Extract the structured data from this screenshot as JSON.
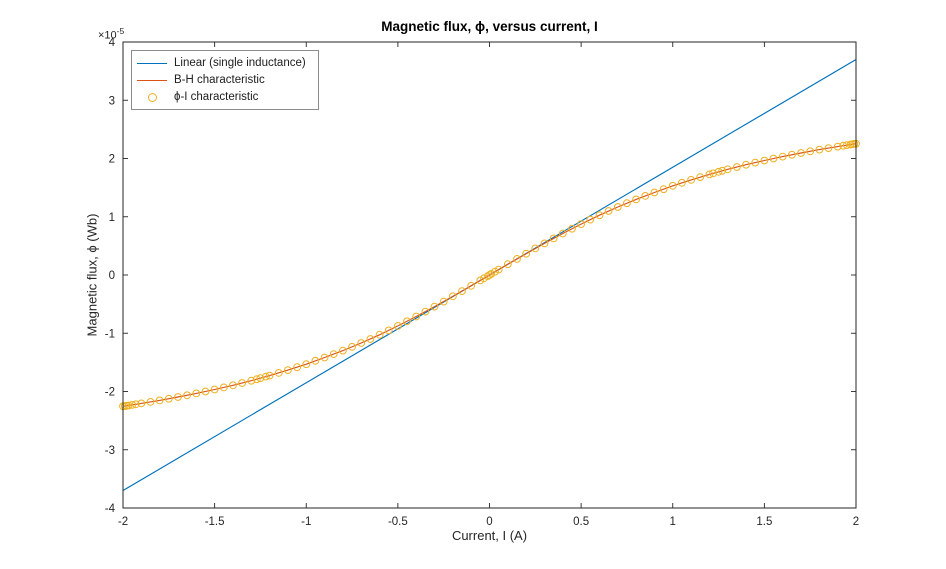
{
  "chart_data": {
    "type": "line",
    "title": "Magnetic flux,  ϕ,  versus current,  I",
    "xlabel": "Current, I (A)",
    "ylabel": "Magnetic flux,  ϕ  (Wb)",
    "y_offset_label": {
      "base": "×10",
      "exp": "-5"
    },
    "y_unit_multiplier": "1e-5",
    "axes": {
      "xlim": [
        -2,
        2
      ],
      "ylim": [
        -4,
        4
      ],
      "xticks": [
        -2,
        -1.5,
        -1,
        -0.5,
        0,
        0.5,
        1,
        1.5,
        2
      ],
      "xtick_labels": [
        "-2",
        "-1.5",
        "-1",
        "-0.5",
        "0",
        "0.5",
        "1",
        "1.5",
        "2"
      ],
      "yticks": [
        -4,
        -3,
        -2,
        -1,
        0,
        1,
        2,
        3,
        4
      ],
      "ytick_labels": [
        "-4",
        "-3",
        "-2",
        "-1",
        "0",
        "1",
        "2",
        "3",
        "4"
      ],
      "grid": false,
      "axis_color": "#262626",
      "background": "#ffffff"
    },
    "legend": {
      "position": "northwest",
      "items": [
        {
          "label": "Linear (single inductance)",
          "marker": "line",
          "color": "#0072BD"
        },
        {
          "label": "B-H characteristic",
          "marker": "line",
          "color": "#D95319"
        },
        {
          "label": "ϕ-I  characteristic",
          "marker": "circle",
          "color": "#EDB120"
        }
      ]
    },
    "series": [
      {
        "name": "Linear (single inductance)",
        "type": "line",
        "color": "#0072BD",
        "points": [
          [
            -2,
            -3.7
          ],
          [
            2,
            3.7
          ]
        ]
      },
      {
        "name": "B-H characteristic",
        "type": "line",
        "color": "#D95319",
        "points": [
          [
            -2.0,
            -2.254
          ],
          [
            -1.9,
            -2.205
          ],
          [
            -1.8,
            -2.152
          ],
          [
            -1.7,
            -2.095
          ],
          [
            -1.6,
            -2.033
          ],
          [
            -1.5,
            -1.966
          ],
          [
            -1.4,
            -1.893
          ],
          [
            -1.3,
            -1.814
          ],
          [
            -1.2,
            -1.727
          ],
          [
            -1.1,
            -1.633
          ],
          [
            -1.0,
            -1.531
          ],
          [
            -0.9,
            -1.417
          ],
          [
            -0.8,
            -1.297
          ],
          [
            -0.7,
            -1.167
          ],
          [
            -0.6,
            -1.026
          ],
          [
            -0.5,
            -0.874
          ],
          [
            -0.4,
            -0.713
          ],
          [
            -0.3,
            -0.543
          ],
          [
            -0.2,
            -0.366
          ],
          [
            -0.1,
            -0.185
          ],
          [
            0,
            0
          ],
          [
            0.1,
            0.185
          ],
          [
            0.2,
            0.366
          ],
          [
            0.3,
            0.543
          ],
          [
            0.4,
            0.713
          ],
          [
            0.5,
            0.874
          ],
          [
            0.6,
            1.026
          ],
          [
            0.7,
            1.167
          ],
          [
            0.8,
            1.297
          ],
          [
            0.9,
            1.417
          ],
          [
            1.0,
            1.531
          ],
          [
            1.1,
            1.633
          ],
          [
            1.2,
            1.727
          ],
          [
            1.3,
            1.814
          ],
          [
            1.4,
            1.893
          ],
          [
            1.5,
            1.966
          ],
          [
            1.6,
            2.033
          ],
          [
            1.7,
            2.095
          ],
          [
            1.8,
            2.152
          ],
          [
            1.9,
            2.205
          ],
          [
            2.0,
            2.254
          ]
        ]
      },
      {
        "name": "ϕ-I characteristic",
        "type": "scatter",
        "marker": "circle",
        "color": "#EDB120",
        "points": [
          [
            -2.0,
            -2.254
          ],
          [
            -1.99,
            -2.25
          ],
          [
            -1.98,
            -2.245
          ],
          [
            -1.97,
            -2.24
          ],
          [
            -1.95,
            -2.23
          ],
          [
            -1.93,
            -2.22
          ],
          [
            -1.9,
            -2.205
          ],
          [
            -1.85,
            -2.179
          ],
          [
            -1.8,
            -2.152
          ],
          [
            -1.75,
            -2.124
          ],
          [
            -1.7,
            -2.095
          ],
          [
            -1.65,
            -2.065
          ],
          [
            -1.6,
            -2.033
          ],
          [
            -1.55,
            -2.0
          ],
          [
            -1.5,
            -1.966
          ],
          [
            -1.45,
            -1.93
          ],
          [
            -1.4,
            -1.893
          ],
          [
            -1.35,
            -1.854
          ],
          [
            -1.3,
            -1.814
          ],
          [
            -1.27,
            -1.789
          ],
          [
            -1.25,
            -1.771
          ],
          [
            -1.22,
            -1.745
          ],
          [
            -1.2,
            -1.727
          ],
          [
            -1.15,
            -1.681
          ],
          [
            -1.1,
            -1.633
          ],
          [
            -1.05,
            -1.583
          ],
          [
            -1.0,
            -1.531
          ],
          [
            -0.95,
            -1.473
          ],
          [
            -0.9,
            -1.417
          ],
          [
            -0.85,
            -1.358
          ],
          [
            -0.8,
            -1.297
          ],
          [
            -0.75,
            -1.233
          ],
          [
            -0.7,
            -1.167
          ],
          [
            -0.65,
            -1.098
          ],
          [
            -0.6,
            -1.026
          ],
          [
            -0.55,
            -0.951
          ],
          [
            -0.5,
            -0.874
          ],
          [
            -0.45,
            -0.795
          ],
          [
            -0.4,
            -0.713
          ],
          [
            -0.35,
            -0.629
          ],
          [
            -0.3,
            -0.543
          ],
          [
            -0.25,
            -0.456
          ],
          [
            -0.2,
            -0.366
          ],
          [
            -0.15,
            -0.276
          ],
          [
            -0.1,
            -0.185
          ],
          [
            -0.05,
            -0.092
          ],
          [
            -0.03,
            -0.056
          ],
          [
            -0.01,
            -0.019
          ],
          [
            0,
            0
          ],
          [
            0.01,
            0.019
          ],
          [
            0.03,
            0.056
          ],
          [
            0.05,
            0.092
          ],
          [
            0.1,
            0.185
          ],
          [
            0.15,
            0.276
          ],
          [
            0.2,
            0.366
          ],
          [
            0.25,
            0.456
          ],
          [
            0.3,
            0.543
          ],
          [
            0.35,
            0.629
          ],
          [
            0.4,
            0.713
          ],
          [
            0.45,
            0.795
          ],
          [
            0.5,
            0.874
          ],
          [
            0.55,
            0.951
          ],
          [
            0.6,
            1.026
          ],
          [
            0.65,
            1.098
          ],
          [
            0.7,
            1.167
          ],
          [
            0.75,
            1.233
          ],
          [
            0.8,
            1.297
          ],
          [
            0.85,
            1.358
          ],
          [
            0.9,
            1.417
          ],
          [
            0.95,
            1.473
          ],
          [
            1.0,
            1.531
          ],
          [
            1.05,
            1.583
          ],
          [
            1.1,
            1.633
          ],
          [
            1.15,
            1.681
          ],
          [
            1.2,
            1.727
          ],
          [
            1.22,
            1.745
          ],
          [
            1.25,
            1.771
          ],
          [
            1.27,
            1.789
          ],
          [
            1.3,
            1.814
          ],
          [
            1.35,
            1.854
          ],
          [
            1.4,
            1.893
          ],
          [
            1.45,
            1.93
          ],
          [
            1.5,
            1.966
          ],
          [
            1.55,
            2.0
          ],
          [
            1.6,
            2.033
          ],
          [
            1.65,
            2.065
          ],
          [
            1.7,
            2.095
          ],
          [
            1.75,
            2.124
          ],
          [
            1.8,
            2.152
          ],
          [
            1.85,
            2.179
          ],
          [
            1.9,
            2.205
          ],
          [
            1.93,
            2.22
          ],
          [
            1.95,
            2.23
          ],
          [
            1.97,
            2.24
          ],
          [
            1.98,
            2.245
          ],
          [
            1.99,
            2.25
          ],
          [
            2.0,
            2.254
          ]
        ]
      }
    ]
  }
}
